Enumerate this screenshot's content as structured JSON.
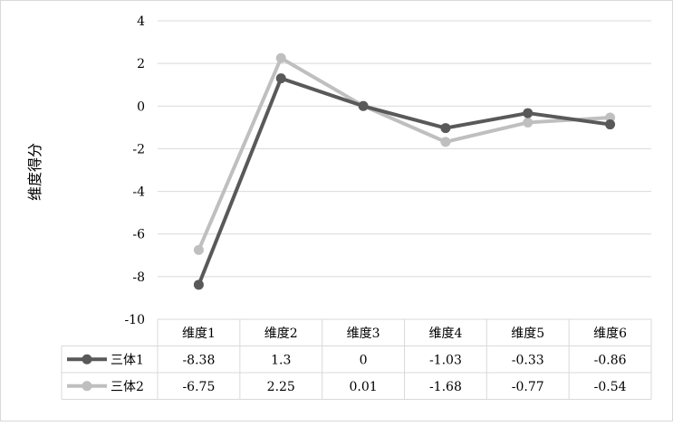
{
  "chart_data": {
    "type": "line",
    "categories": [
      "维度1",
      "维度2",
      "维度3",
      "维度4",
      "维度5",
      "维度6"
    ],
    "series": [
      {
        "name": "三体1",
        "values": [
          -8.38,
          1.3,
          0,
          -1.03,
          -0.33,
          -0.86
        ],
        "display": [
          "-8.38",
          "1.3",
          "0",
          "-1.03",
          "-0.33",
          "-0.86"
        ],
        "color": "#595959"
      },
      {
        "name": "三体2",
        "values": [
          -6.75,
          2.25,
          0.01,
          -1.68,
          -0.77,
          -0.54
        ],
        "display": [
          "-6.75",
          "2.25",
          "0.01",
          "-1.68",
          "-0.77",
          "-0.54"
        ],
        "color": "#bfbfbf"
      }
    ],
    "ylabel": "维度得分",
    "ylim": [
      -10,
      4
    ],
    "yticks": [
      4,
      2,
      0,
      -2,
      -4,
      -6,
      -8,
      -10
    ],
    "grid": true,
    "legend": "data-table-left"
  }
}
